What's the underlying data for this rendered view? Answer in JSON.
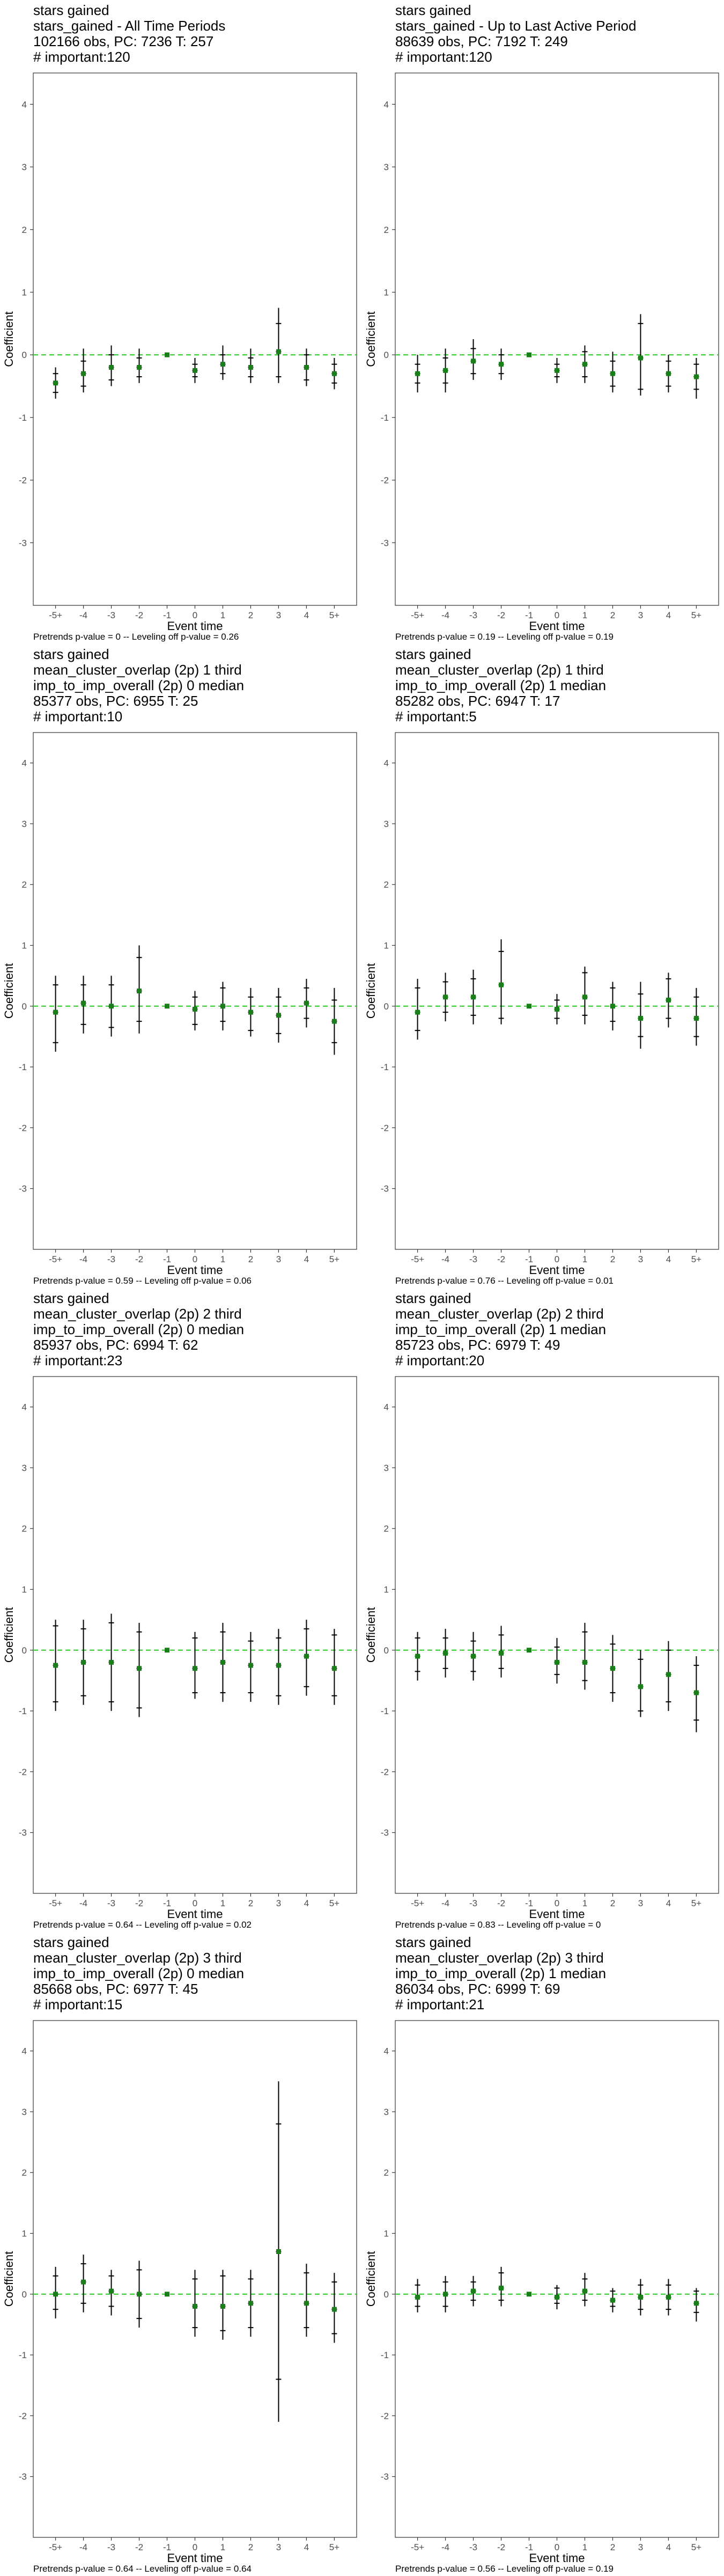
{
  "chart_data": [
    {
      "type": "scatter",
      "title_lines": [
        "stars gained",
        "stars_gained - All Time Periods",
        "102166 obs, PC: 7236 T: 257",
        "# important:120"
      ],
      "xlabel": "Event time",
      "ylabel": "Coefficient",
      "categories": [
        "-5+",
        "-4",
        "-3",
        "-2",
        "-1",
        "0",
        "1",
        "2",
        "3",
        "4",
        "5+"
      ],
      "ylim": [
        -4,
        4.5
      ],
      "yticks": [
        -3,
        -2,
        -1,
        0,
        1,
        2,
        3,
        4
      ],
      "estimate": [
        -0.45,
        -0.3,
        -0.2,
        -0.2,
        0,
        -0.25,
        -0.15,
        -0.2,
        0.05,
        -0.2,
        -0.3
      ],
      "ci_inner": [
        [
          -0.6,
          -0.3
        ],
        [
          -0.5,
          -0.1
        ],
        [
          -0.4,
          0.0
        ],
        [
          -0.35,
          -0.05
        ],
        [
          0,
          0
        ],
        [
          -0.35,
          -0.15
        ],
        [
          -0.3,
          0.0
        ],
        [
          -0.35,
          -0.05
        ],
        [
          -0.35,
          0.5
        ],
        [
          -0.4,
          0.0
        ],
        [
          -0.45,
          -0.15
        ]
      ],
      "ci_outer": [
        [
          -0.7,
          -0.2
        ],
        [
          -0.6,
          0.1
        ],
        [
          -0.5,
          0.15
        ],
        [
          -0.45,
          0.1
        ],
        [
          0,
          0
        ],
        [
          -0.45,
          -0.05
        ],
        [
          -0.4,
          0.15
        ],
        [
          -0.45,
          0.1
        ],
        [
          -0.45,
          0.75
        ],
        [
          -0.5,
          0.1
        ],
        [
          -0.55,
          -0.05
        ]
      ],
      "reference_line": 0,
      "footnote": "Pretrends p-value = 0 -- Leveling off p-value = 0.26",
      "colors": {
        "estimate": "#1a7f1a",
        "reference": "#33cc33",
        "error_bar": "#000000"
      },
      "grid": false,
      "legend": "none"
    },
    {
      "type": "scatter",
      "title_lines": [
        "stars gained",
        "stars_gained - Up to Last Active Period",
        "88639 obs, PC: 7192 T: 249",
        "# important:120"
      ],
      "xlabel": "Event time",
      "ylabel": "Coefficient",
      "categories": [
        "-5+",
        "-4",
        "-3",
        "-2",
        "-1",
        "0",
        "1",
        "2",
        "3",
        "4",
        "5+"
      ],
      "ylim": [
        -4,
        4.5
      ],
      "yticks": [
        -3,
        -2,
        -1,
        0,
        1,
        2,
        3,
        4
      ],
      "estimate": [
        -0.3,
        -0.25,
        -0.1,
        -0.15,
        0,
        -0.25,
        -0.15,
        -0.3,
        -0.05,
        -0.3,
        -0.35
      ],
      "ci_inner": [
        [
          -0.45,
          -0.15
        ],
        [
          -0.45,
          -0.05
        ],
        [
          -0.3,
          0.1
        ],
        [
          -0.3,
          0.0
        ],
        [
          0,
          0
        ],
        [
          -0.35,
          -0.15
        ],
        [
          -0.35,
          0.05
        ],
        [
          -0.5,
          -0.1
        ],
        [
          -0.55,
          0.5
        ],
        [
          -0.5,
          -0.1
        ],
        [
          -0.55,
          -0.15
        ]
      ],
      "ci_outer": [
        [
          -0.6,
          0.0
        ],
        [
          -0.6,
          0.1
        ],
        [
          -0.4,
          0.25
        ],
        [
          -0.4,
          0.1
        ],
        [
          0,
          0
        ],
        [
          -0.45,
          -0.05
        ],
        [
          -0.45,
          0.15
        ],
        [
          -0.6,
          0.05
        ],
        [
          -0.65,
          0.65
        ],
        [
          -0.6,
          0.0
        ],
        [
          -0.7,
          -0.05
        ]
      ],
      "reference_line": 0,
      "footnote": "Pretrends p-value = 0.19 -- Leveling off p-value = 0.19",
      "colors": {
        "estimate": "#1a7f1a",
        "reference": "#33cc33",
        "error_bar": "#000000"
      },
      "grid": false,
      "legend": "none"
    },
    {
      "type": "scatter",
      "title_lines": [
        "stars gained",
        "mean_cluster_overlap (2p) 1 third",
        "imp_to_imp_overall (2p) 0 median",
        "85377 obs, PC: 6955 T: 25",
        "# important:10"
      ],
      "xlabel": "Event time",
      "ylabel": "Coefficient",
      "categories": [
        "-5+",
        "-4",
        "-3",
        "-2",
        "-1",
        "0",
        "1",
        "2",
        "3",
        "4",
        "5+"
      ],
      "ylim": [
        -4,
        4.5
      ],
      "yticks": [
        -3,
        -2,
        -1,
        0,
        1,
        2,
        3,
        4
      ],
      "estimate": [
        -0.1,
        0.05,
        0.0,
        0.25,
        0,
        -0.05,
        0.0,
        -0.1,
        -0.15,
        0.05,
        -0.25
      ],
      "ci_inner": [
        [
          -0.6,
          0.35
        ],
        [
          -0.3,
          0.35
        ],
        [
          -0.35,
          0.35
        ],
        [
          -0.25,
          0.8
        ],
        [
          0,
          0
        ],
        [
          -0.3,
          0.15
        ],
        [
          -0.25,
          0.3
        ],
        [
          -0.4,
          0.15
        ],
        [
          -0.45,
          0.15
        ],
        [
          -0.2,
          0.3
        ],
        [
          -0.6,
          0.1
        ]
      ],
      "ci_outer": [
        [
          -0.75,
          0.5
        ],
        [
          -0.45,
          0.5
        ],
        [
          -0.5,
          0.5
        ],
        [
          -0.45,
          1.0
        ],
        [
          0,
          0
        ],
        [
          -0.4,
          0.25
        ],
        [
          -0.4,
          0.4
        ],
        [
          -0.5,
          0.3
        ],
        [
          -0.6,
          0.3
        ],
        [
          -0.35,
          0.45
        ],
        [
          -0.8,
          0.3
        ]
      ],
      "reference_line": 0,
      "footnote": "Pretrends p-value = 0.59 -- Leveling off p-value = 0.06",
      "colors": {
        "estimate": "#1a7f1a",
        "reference": "#33cc33",
        "error_bar": "#000000"
      },
      "grid": false,
      "legend": "none"
    },
    {
      "type": "scatter",
      "title_lines": [
        "stars gained",
        "mean_cluster_overlap (2p) 1 third",
        "imp_to_imp_overall (2p) 1 median",
        "85282 obs, PC: 6947 T: 17",
        "# important:5"
      ],
      "xlabel": "Event time",
      "ylabel": "Coefficient",
      "categories": [
        "-5+",
        "-4",
        "-3",
        "-2",
        "-1",
        "0",
        "1",
        "2",
        "3",
        "4",
        "5+"
      ],
      "ylim": [
        -4,
        4.5
      ],
      "yticks": [
        -3,
        -2,
        -1,
        0,
        1,
        2,
        3,
        4
      ],
      "estimate": [
        -0.1,
        0.15,
        0.15,
        0.35,
        0,
        -0.05,
        0.15,
        0.0,
        -0.2,
        0.1,
        -0.2
      ],
      "ci_inner": [
        [
          -0.4,
          0.3
        ],
        [
          -0.1,
          0.4
        ],
        [
          -0.15,
          0.45
        ],
        [
          -0.2,
          0.9
        ],
        [
          0,
          0
        ],
        [
          -0.2,
          0.1
        ],
        [
          -0.15,
          0.55
        ],
        [
          -0.25,
          0.3
        ],
        [
          -0.5,
          0.2
        ],
        [
          -0.2,
          0.45
        ],
        [
          -0.5,
          0.15
        ]
      ],
      "ci_outer": [
        [
          -0.55,
          0.45
        ],
        [
          -0.25,
          0.55
        ],
        [
          -0.3,
          0.6
        ],
        [
          -0.3,
          1.1
        ],
        [
          0,
          0
        ],
        [
          -0.3,
          0.2
        ],
        [
          -0.3,
          0.65
        ],
        [
          -0.4,
          0.4
        ],
        [
          -0.7,
          0.4
        ],
        [
          -0.35,
          0.55
        ],
        [
          -0.65,
          0.3
        ]
      ],
      "reference_line": 0,
      "footnote": "Pretrends p-value = 0.76 -- Leveling off p-value = 0.01",
      "colors": {
        "estimate": "#1a7f1a",
        "reference": "#33cc33",
        "error_bar": "#000000"
      },
      "grid": false,
      "legend": "none"
    },
    {
      "type": "scatter",
      "title_lines": [
        "stars gained",
        "mean_cluster_overlap (2p) 2 third",
        "imp_to_imp_overall (2p) 0 median",
        "85937 obs, PC: 6994 T: 62",
        "# important:23"
      ],
      "xlabel": "Event time",
      "ylabel": "Coefficient",
      "categories": [
        "-5+",
        "-4",
        "-3",
        "-2",
        "-1",
        "0",
        "1",
        "2",
        "3",
        "4",
        "5+"
      ],
      "ylim": [
        -4,
        4.5
      ],
      "yticks": [
        -3,
        -2,
        -1,
        0,
        1,
        2,
        3,
        4
      ],
      "estimate": [
        -0.25,
        -0.2,
        -0.2,
        -0.3,
        0,
        -0.3,
        -0.2,
        -0.25,
        -0.25,
        -0.1,
        -0.3
      ],
      "ci_inner": [
        [
          -0.85,
          0.4
        ],
        [
          -0.75,
          0.35
        ],
        [
          -0.85,
          0.45
        ],
        [
          -0.95,
          0.3
        ],
        [
          0,
          0
        ],
        [
          -0.7,
          0.2
        ],
        [
          -0.7,
          0.3
        ],
        [
          -0.7,
          0.15
        ],
        [
          -0.75,
          0.2
        ],
        [
          -0.6,
          0.35
        ],
        [
          -0.75,
          0.25
        ]
      ],
      "ci_outer": [
        [
          -1.0,
          0.5
        ],
        [
          -0.9,
          0.5
        ],
        [
          -1.0,
          0.6
        ],
        [
          -1.1,
          0.45
        ],
        [
          0,
          0
        ],
        [
          -0.8,
          0.3
        ],
        [
          -0.85,
          0.45
        ],
        [
          -0.85,
          0.3
        ],
        [
          -0.9,
          0.35
        ],
        [
          -0.75,
          0.5
        ],
        [
          -0.9,
          0.35
        ]
      ],
      "reference_line": 0,
      "footnote": "Pretrends p-value = 0.64 -- Leveling off p-value = 0.02",
      "colors": {
        "estimate": "#1a7f1a",
        "reference": "#33cc33",
        "error_bar": "#000000"
      },
      "grid": false,
      "legend": "none"
    },
    {
      "type": "scatter",
      "title_lines": [
        "stars gained",
        "mean_cluster_overlap (2p) 2 third",
        "imp_to_imp_overall (2p) 1 median",
        "85723 obs, PC: 6979 T: 49",
        "# important:20"
      ],
      "xlabel": "Event time",
      "ylabel": "Coefficient",
      "categories": [
        "-5+",
        "-4",
        "-3",
        "-2",
        "-1",
        "0",
        "1",
        "2",
        "3",
        "4",
        "5+"
      ],
      "ylim": [
        -4,
        4.5
      ],
      "yticks": [
        -3,
        -2,
        -1,
        0,
        1,
        2,
        3,
        4
      ],
      "estimate": [
        -0.1,
        -0.05,
        -0.1,
        -0.05,
        0,
        -0.2,
        -0.2,
        -0.3,
        -0.6,
        -0.4,
        -0.7
      ],
      "ci_inner": [
        [
          -0.35,
          0.2
        ],
        [
          -0.3,
          0.2
        ],
        [
          -0.35,
          0.15
        ],
        [
          -0.3,
          0.25
        ],
        [
          0,
          0
        ],
        [
          -0.4,
          0.05
        ],
        [
          -0.5,
          0.3
        ],
        [
          -0.7,
          0.1
        ],
        [
          -1.0,
          -0.15
        ],
        [
          -0.85,
          0.0
        ],
        [
          -1.15,
          -0.25
        ]
      ],
      "ci_outer": [
        [
          -0.5,
          0.3
        ],
        [
          -0.45,
          0.35
        ],
        [
          -0.5,
          0.3
        ],
        [
          -0.45,
          0.4
        ],
        [
          0,
          0
        ],
        [
          -0.55,
          0.2
        ],
        [
          -0.65,
          0.45
        ],
        [
          -0.85,
          0.25
        ],
        [
          -1.1,
          0.0
        ],
        [
          -1.0,
          0.15
        ],
        [
          -1.35,
          -0.1
        ]
      ],
      "reference_line": 0,
      "footnote": "Pretrends p-value = 0.83 -- Leveling off p-value = 0",
      "colors": {
        "estimate": "#1a7f1a",
        "reference": "#33cc33",
        "error_bar": "#000000"
      },
      "grid": false,
      "legend": "none"
    },
    {
      "type": "scatter",
      "title_lines": [
        "stars gained",
        "mean_cluster_overlap (2p) 3 third",
        "imp_to_imp_overall (2p) 0 median",
        "85668 obs, PC: 6977 T: 45",
        "# important:15"
      ],
      "xlabel": "Event time",
      "ylabel": "Coefficient",
      "categories": [
        "-5+",
        "-4",
        "-3",
        "-2",
        "-1",
        "0",
        "1",
        "2",
        "3",
        "4",
        "5+"
      ],
      "ylim": [
        -4,
        4.5
      ],
      "yticks": [
        -3,
        -2,
        -1,
        0,
        1,
        2,
        3,
        4
      ],
      "estimate": [
        0.0,
        0.2,
        0.05,
        0.0,
        0,
        -0.2,
        -0.2,
        -0.15,
        0.7,
        -0.15,
        -0.25
      ],
      "ci_inner": [
        [
          -0.25,
          0.3
        ],
        [
          -0.15,
          0.5
        ],
        [
          -0.2,
          0.3
        ],
        [
          -0.4,
          0.4
        ],
        [
          0,
          0
        ],
        [
          -0.55,
          0.25
        ],
        [
          -0.6,
          0.3
        ],
        [
          -0.55,
          0.25
        ],
        [
          -1.4,
          2.8
        ],
        [
          -0.55,
          0.35
        ],
        [
          -0.65,
          0.2
        ]
      ],
      "ci_outer": [
        [
          -0.4,
          0.45
        ],
        [
          -0.3,
          0.65
        ],
        [
          -0.35,
          0.4
        ],
        [
          -0.55,
          0.55
        ],
        [
          0,
          0
        ],
        [
          -0.7,
          0.4
        ],
        [
          -0.75,
          0.4
        ],
        [
          -0.7,
          0.4
        ],
        [
          -2.1,
          3.5
        ],
        [
          -0.7,
          0.5
        ],
        [
          -0.8,
          0.35
        ]
      ],
      "reference_line": 0,
      "footnote": "Pretrends p-value = 0.64 -- Leveling off p-value = 0.64",
      "colors": {
        "estimate": "#1a7f1a",
        "reference": "#33cc33",
        "error_bar": "#000000"
      },
      "grid": false,
      "legend": "none"
    },
    {
      "type": "scatter",
      "title_lines": [
        "stars gained",
        "mean_cluster_overlap (2p) 3 third",
        "imp_to_imp_overall (2p) 1 median",
        "86034 obs, PC: 6999 T: 69",
        "# important:21"
      ],
      "xlabel": "Event time",
      "ylabel": "Coefficient",
      "categories": [
        "-5+",
        "-4",
        "-3",
        "-2",
        "-1",
        "0",
        "1",
        "2",
        "3",
        "4",
        "5+"
      ],
      "ylim": [
        -4,
        4.5
      ],
      "yticks": [
        -3,
        -2,
        -1,
        0,
        1,
        2,
        3,
        4
      ],
      "estimate": [
        -0.05,
        0.0,
        0.05,
        0.1,
        0,
        -0.05,
        0.05,
        -0.1,
        -0.05,
        -0.05,
        -0.15
      ],
      "ci_inner": [
        [
          -0.2,
          0.15
        ],
        [
          -0.2,
          0.2
        ],
        [
          -0.1,
          0.2
        ],
        [
          -0.1,
          0.35
        ],
        [
          0,
          0
        ],
        [
          -0.15,
          0.1
        ],
        [
          -0.1,
          0.25
        ],
        [
          -0.2,
          0.05
        ],
        [
          -0.25,
          0.15
        ],
        [
          -0.25,
          0.15
        ],
        [
          -0.3,
          0.05
        ]
      ],
      "ci_outer": [
        [
          -0.3,
          0.25
        ],
        [
          -0.3,
          0.3
        ],
        [
          -0.2,
          0.3
        ],
        [
          -0.2,
          0.45
        ],
        [
          0,
          0
        ],
        [
          -0.25,
          0.15
        ],
        [
          -0.2,
          0.35
        ],
        [
          -0.3,
          0.1
        ],
        [
          -0.35,
          0.25
        ],
        [
          -0.35,
          0.25
        ],
        [
          -0.45,
          0.1
        ]
      ],
      "reference_line": 0,
      "footnote": "Pretrends p-value = 0.56 -- Leveling off p-value = 0.19",
      "colors": {
        "estimate": "#1a7f1a",
        "reference": "#33cc33",
        "error_bar": "#000000"
      },
      "grid": false,
      "legend": "none"
    }
  ]
}
